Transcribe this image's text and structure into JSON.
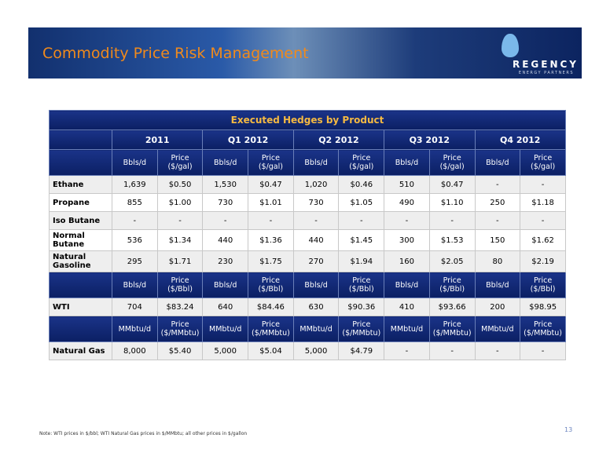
{
  "header": {
    "title": "Commodity Price Risk Management",
    "logo": "REGENCY",
    "logo_sub": "ENERGY PARTNERS"
  },
  "table": {
    "title": "Executed Hedges by Product",
    "periods": [
      "2011",
      "Q1 2012",
      "Q2 2012",
      "Q3 2012",
      "Q4 2012"
    ],
    "sections": [
      {
        "units": [
          "Bbls/d",
          "Price ($/gal)",
          "Bbls/d",
          "Price ($/gal)",
          "Bbls/d",
          "Price ($/gal)",
          "Bbls/d",
          "Price ($/gal)",
          "Bbls/d",
          "Price ($/gal)"
        ],
        "rows": [
          {
            "label": "Ethane",
            "cells": [
              "1,639",
              "$0.50",
              "1,530",
              "$0.47",
              "1,020",
              "$0.46",
              "510",
              "$0.47",
              "-",
              "-"
            ]
          },
          {
            "label": "Propane",
            "cells": [
              "855",
              "$1.00",
              "730",
              "$1.01",
              "730",
              "$1.05",
              "490",
              "$1.10",
              "250",
              "$1.18"
            ]
          },
          {
            "label": "Iso Butane",
            "cells": [
              "-",
              "-",
              "-",
              "-",
              "-",
              "-",
              "-",
              "-",
              "-",
              "-"
            ]
          },
          {
            "label": "Normal Butane",
            "cells": [
              "536",
              "$1.34",
              "440",
              "$1.36",
              "440",
              "$1.45",
              "300",
              "$1.53",
              "150",
              "$1.62"
            ]
          },
          {
            "label": "Natural Gasoline",
            "cells": [
              "295",
              "$1.71",
              "230",
              "$1.75",
              "270",
              "$1.94",
              "160",
              "$2.05",
              "80",
              "$2.19"
            ]
          }
        ]
      },
      {
        "units": [
          "Bbls/d",
          "Price ($/Bbl)",
          "Bbls/d",
          "Price ($/Bbl)",
          "Bbls/d",
          "Price ($/Bbl)",
          "Bbls/d",
          "Price ($/Bbl)",
          "Bbls/d",
          "Price ($/Bbl)"
        ],
        "rows": [
          {
            "label": "WTI",
            "cells": [
              "704",
              "$83.24",
              "640",
              "$84.46",
              "630",
              "$90.36",
              "410",
              "$93.66",
              "200",
              "$98.95"
            ]
          }
        ]
      },
      {
        "units": [
          "MMbtu/d",
          "Price ($/MMbtu)",
          "MMbtu/d",
          "Price ($/MMbtu)",
          "MMbtu/d",
          "Price ($/MMbtu)",
          "MMbtu/d",
          "Price ($/MMbtu)",
          "MMbtu/d",
          "Price ($/MMbtu)"
        ],
        "rows": [
          {
            "label": "Natural Gas",
            "cells": [
              "8,000",
              "$5.40",
              "5,000",
              "$5.04",
              "5,000",
              "$4.79",
              "-",
              "-",
              "-",
              "-"
            ]
          }
        ]
      }
    ]
  },
  "footer": {
    "note": "Note:  WTI prices in $/bbl; WTI Natural Gas prices in $/MMbtu; all other prices in $/gallon",
    "page": "13"
  }
}
